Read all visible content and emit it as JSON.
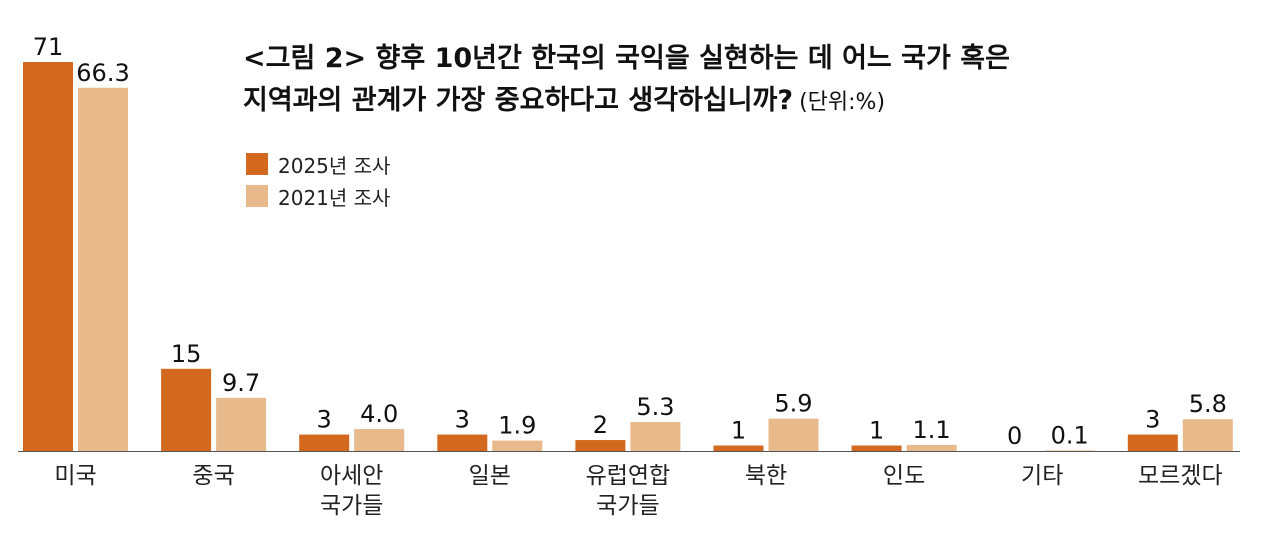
{
  "chart_data": {
    "type": "bar",
    "title": "<그림 2> 향후 10년간 한국의 국익을 실현하는 데 어느 국가 혹은",
    "title_line2": "지역과의 관계가 가장 중요하다고 생각하십니까?",
    "unit": "(단위:%)",
    "categories": [
      "미국",
      "중국",
      "아세안\n국가들",
      "일본",
      "유럽연합\n국가들",
      "북한",
      "인도",
      "기타",
      "모르겠다"
    ],
    "series": [
      {
        "name": "2025년 조사",
        "color": "#d2691e",
        "values": [
          71,
          15,
          3,
          3,
          2,
          1,
          1,
          0,
          3
        ],
        "labels": [
          "71",
          "15",
          "3",
          "3",
          "2",
          "1",
          "1",
          "0",
          "3"
        ]
      },
      {
        "name": "2021년 조사",
        "color": "#e8b98a",
        "values": [
          66.3,
          9.7,
          4.0,
          1.9,
          5.3,
          5.9,
          1.1,
          0.1,
          5.8
        ],
        "labels": [
          "66.3",
          "9.7",
          "4.0",
          "1.9",
          "5.3",
          "5.9",
          "1.1",
          "0.1",
          "5.8"
        ]
      }
    ],
    "ylim": [
      0,
      71
    ],
    "grid": false,
    "legend_position": "top-left"
  }
}
